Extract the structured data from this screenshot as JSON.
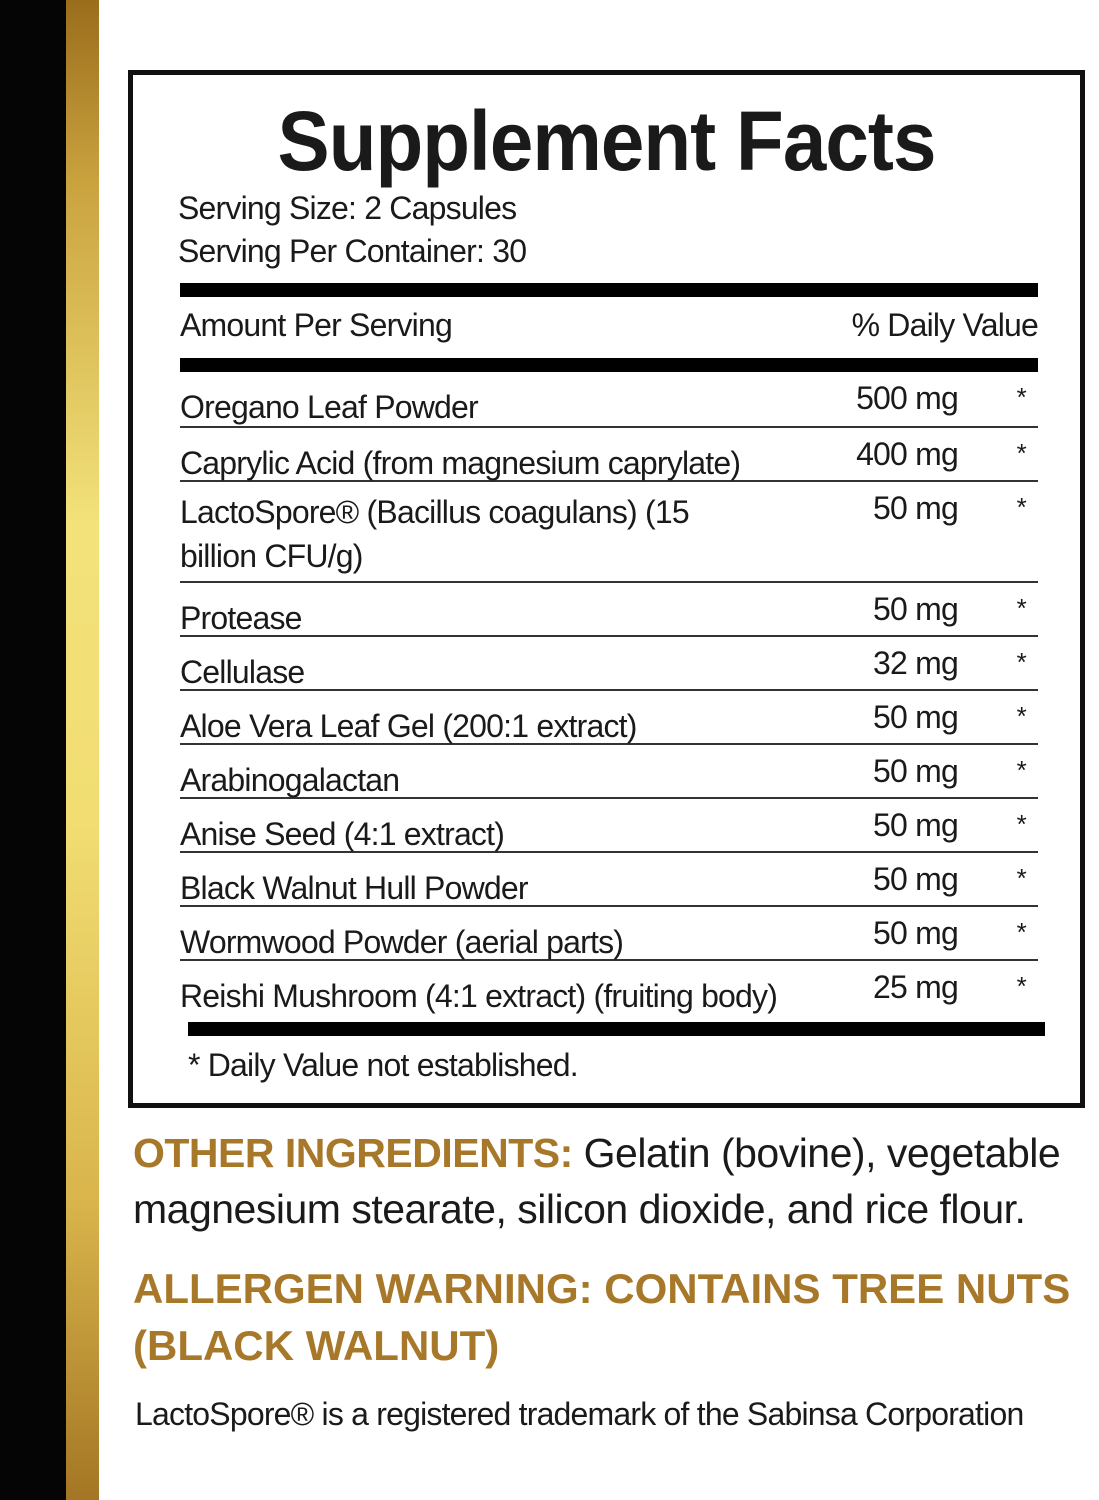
{
  "title": "Supplement Facts",
  "serving_size": "Serving Size: 2 Capsules",
  "servings_per_container": "Serving Per Container: 30",
  "header": {
    "amount": "Amount Per Serving",
    "dv": "% Daily Value"
  },
  "rows": [
    {
      "name": "Oregano Leaf Powder",
      "amount": "500 mg",
      "dv": "*"
    },
    {
      "name": "Caprylic Acid (from magnesium caprylate)",
      "amount": "400 mg",
      "dv": "*"
    },
    {
      "name": "LactoSpore® (Bacillus coagulans) (15 billion CFU/g)",
      "amount": "50 mg",
      "dv": "*"
    },
    {
      "name": "Protease",
      "amount": "50 mg",
      "dv": "*"
    },
    {
      "name": "Cellulase",
      "amount": "32 mg",
      "dv": "*"
    },
    {
      "name": "Aloe Vera Leaf Gel (200:1 extract)",
      "amount": "50 mg",
      "dv": "*"
    },
    {
      "name": "Arabinogalactan",
      "amount": "50 mg",
      "dv": "*"
    },
    {
      "name": "Anise Seed (4:1 extract)",
      "amount": "50 mg",
      "dv": "*"
    },
    {
      "name": "Black Walnut Hull Powder",
      "amount": "50 mg",
      "dv": "*"
    },
    {
      "name": "Wormwood Powder (aerial parts)",
      "amount": "50 mg",
      "dv": "*"
    },
    {
      "name": "Reishi Mushroom (4:1 extract) (fruiting body)",
      "amount": "25 mg",
      "dv": "*"
    }
  ],
  "footnote": "* Daily Value not established.",
  "other_label": "OTHER INGREDIENTS:",
  "other_text": " Gelatin (bovine), vegetable magnesium stearate, silicon dioxide, and rice flour.",
  "allergen": "ALLERGEN WARNING: CONTAINS TREE NUTS (BLACK WALNUT)",
  "trademark": "LactoSpore® is a registered trademark of the Sabinsa Corporation",
  "colors": {
    "accent": "#a8782a",
    "gold_strip": "#f1dd72"
  }
}
